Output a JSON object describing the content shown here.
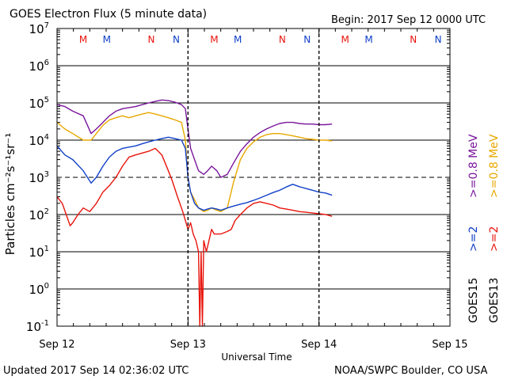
{
  "header": {
    "title": "GOES Electron Flux (5 minute data)",
    "begin": "Begin: 2017 Sep 12 0000 UTC"
  },
  "footer": {
    "updated": "Updated 2017 Sep 14 02:36:02 UTC",
    "credit": "NOAA/SWPC Boulder, CO USA"
  },
  "colors": {
    "goes15_gt2": "#1040c8",
    "goes13_gt2": "#e8140c",
    "goes15_gt08": "#7a169c",
    "goes13_gt08": "#e8a800"
  },
  "chart_data": {
    "type": "line",
    "xlabel": "Universal Time",
    "ylabel": "Particles cm⁻²s⁻¹sr⁻¹",
    "yscale": "log",
    "ylim": [
      0.1,
      10000000
    ],
    "xlim": [
      0,
      3
    ],
    "x_unit": "days since 2017 Sep 12 0000 UTC",
    "x_ticks": [
      "Sep 12",
      "Sep 13",
      "Sep 14",
      "Sep 15"
    ],
    "y_ticks": [
      {
        "base": "10",
        "exp": "-1"
      },
      {
        "base": "10",
        "exp": "0"
      },
      {
        "base": "10",
        "exp": "1"
      },
      {
        "base": "10",
        "exp": "2"
      },
      {
        "base": "10",
        "exp": "3"
      },
      {
        "base": "10",
        "exp": "4"
      },
      {
        "base": "10",
        "exp": "5"
      },
      {
        "base": "10",
        "exp": "6"
      },
      {
        "base": "10",
        "exp": "7"
      }
    ],
    "threshold_line": 1000,
    "grid": true,
    "satellite_markers": [
      {
        "label": "M",
        "satellite": "GOES13",
        "x": 0.2
      },
      {
        "label": "M",
        "satellite": "GOES15",
        "x": 0.38
      },
      {
        "label": "N",
        "satellite": "GOES13",
        "x": 0.72
      },
      {
        "label": "N",
        "satellite": "GOES15",
        "x": 0.91
      },
      {
        "label": "M",
        "satellite": "GOES13",
        "x": 1.2
      },
      {
        "label": "M",
        "satellite": "GOES15",
        "x": 1.38
      },
      {
        "label": "N",
        "satellite": "GOES13",
        "x": 1.72
      },
      {
        "label": "N",
        "satellite": "GOES15",
        "x": 1.91
      },
      {
        "label": "M",
        "satellite": "GOES13",
        "x": 2.2
      },
      {
        "label": "M",
        "satellite": "GOES15",
        "x": 2.38
      },
      {
        "label": "N",
        "satellite": "GOES13",
        "x": 2.72
      },
      {
        "label": "N",
        "satellite": "GOES15",
        "x": 2.91
      }
    ],
    "legend": {
      "placement": "right",
      "groups": [
        {
          "satellite": "GOES15",
          "entries": [
            {
              "text": ">=2",
              "color_key": "goes15_gt2"
            },
            {
              "text": ">=0.8 MeV",
              "color_key": "goes15_gt08"
            }
          ]
        },
        {
          "satellite": "GOES13",
          "entries": [
            {
              "text": ">=2",
              "color_key": "goes13_gt2"
            },
            {
              "text": ">=0.8 MeV",
              "color_key": "goes13_gt08"
            }
          ]
        }
      ]
    },
    "series": [
      {
        "name": "GOES15 >=0.8 MeV",
        "color_key": "goes15_gt08",
        "x": [
          0,
          0.06,
          0.12,
          0.2,
          0.26,
          0.3,
          0.35,
          0.4,
          0.45,
          0.5,
          0.55,
          0.6,
          0.65,
          0.7,
          0.75,
          0.8,
          0.85,
          0.9,
          0.95,
          0.98,
          1.0,
          1.02,
          1.05,
          1.08,
          1.12,
          1.15,
          1.18,
          1.22,
          1.25,
          1.3,
          1.35,
          1.4,
          1.45,
          1.5,
          1.55,
          1.6,
          1.65,
          1.7,
          1.75,
          1.8,
          1.85,
          1.9,
          1.95,
          2.0,
          2.05,
          2.1
        ],
        "y": [
          90000,
          80000,
          60000,
          45000,
          15000,
          20000,
          30000,
          45000,
          60000,
          70000,
          75000,
          80000,
          90000,
          100000,
          110000,
          120000,
          115000,
          105000,
          90000,
          70000,
          20000,
          6000,
          3000,
          1500,
          1200,
          1500,
          2000,
          1500,
          1000,
          1200,
          2500,
          5000,
          8000,
          12000,
          16000,
          20000,
          24000,
          28000,
          30000,
          30000,
          28000,
          27000,
          27000,
          26000,
          26000,
          27000
        ]
      },
      {
        "name": "GOES13 >=0.8 MeV",
        "color_key": "goes13_gt08",
        "x": [
          0,
          0.06,
          0.12,
          0.2,
          0.26,
          0.3,
          0.35,
          0.4,
          0.45,
          0.5,
          0.55,
          0.6,
          0.65,
          0.7,
          0.75,
          0.8,
          0.85,
          0.9,
          0.95,
          0.98,
          1.0,
          1.02,
          1.05,
          1.08,
          1.12,
          1.15,
          1.18,
          1.22,
          1.25,
          1.3,
          1.35,
          1.4,
          1.45,
          1.5,
          1.55,
          1.6,
          1.65,
          1.7,
          1.75,
          1.8,
          1.85,
          1.9,
          1.95,
          2.0,
          2.05,
          2.1
        ],
        "y": [
          30000,
          20000,
          15000,
          10000,
          10000,
          15000,
          25000,
          35000,
          40000,
          45000,
          40000,
          45000,
          50000,
          55000,
          50000,
          45000,
          40000,
          35000,
          30000,
          10000,
          1000,
          400,
          250,
          150,
          120,
          130,
          150,
          130,
          120,
          150,
          800,
          3000,
          6000,
          9000,
          12000,
          14000,
          15000,
          15000,
          14000,
          13000,
          12000,
          11000,
          10500,
          10000,
          10000,
          9500
        ]
      },
      {
        "name": "GOES15 >=2 MeV",
        "color_key": "goes15_gt2",
        "x": [
          0,
          0.06,
          0.12,
          0.2,
          0.26,
          0.3,
          0.35,
          0.4,
          0.45,
          0.5,
          0.55,
          0.6,
          0.65,
          0.7,
          0.75,
          0.8,
          0.85,
          0.9,
          0.95,
          0.98,
          1.0,
          1.02,
          1.05,
          1.08,
          1.12,
          1.15,
          1.18,
          1.22,
          1.25,
          1.3,
          1.35,
          1.4,
          1.45,
          1.5,
          1.55,
          1.6,
          1.65,
          1.7,
          1.75,
          1.8,
          1.85,
          1.9,
          1.95,
          2.0,
          2.05,
          2.1
        ],
        "y": [
          7000,
          4000,
          3000,
          1500,
          700,
          1000,
          2000,
          3500,
          5000,
          6000,
          6500,
          7000,
          8000,
          9000,
          10000,
          11000,
          12000,
          11000,
          10000,
          6000,
          1000,
          400,
          200,
          150,
          130,
          140,
          150,
          140,
          130,
          150,
          170,
          190,
          210,
          240,
          280,
          330,
          390,
          450,
          550,
          650,
          560,
          500,
          450,
          400,
          380,
          330
        ]
      },
      {
        "name": "GOES13 >=2 MeV",
        "color_key": "goes13_gt2",
        "x": [
          0,
          0.04,
          0.08,
          0.1,
          0.12,
          0.16,
          0.2,
          0.25,
          0.3,
          0.35,
          0.4,
          0.45,
          0.5,
          0.55,
          0.6,
          0.65,
          0.7,
          0.75,
          0.8,
          0.85,
          0.88,
          0.92,
          0.96,
          1.0,
          1.02,
          1.04,
          1.06,
          1.08,
          1.09,
          1.1,
          1.11,
          1.12,
          1.14,
          1.16,
          1.18,
          1.2,
          1.25,
          1.3,
          1.33,
          1.36,
          1.4,
          1.45,
          1.5,
          1.55,
          1.6,
          1.65,
          1.7,
          1.75,
          1.8,
          1.85,
          1.9,
          1.95,
          2.0,
          2.05,
          2.1
        ],
        "y": [
          300,
          200,
          80,
          50,
          60,
          100,
          150,
          120,
          200,
          400,
          600,
          1000,
          2000,
          3500,
          4000,
          4500,
          5000,
          6000,
          4000,
          1500,
          800,
          300,
          120,
          40,
          60,
          30,
          20,
          10,
          0.1,
          10,
          0.1,
          20,
          10,
          20,
          40,
          30,
          30,
          35,
          40,
          70,
          100,
          150,
          200,
          220,
          200,
          180,
          150,
          140,
          130,
          120,
          115,
          110,
          105,
          100,
          90
        ]
      }
    ]
  }
}
